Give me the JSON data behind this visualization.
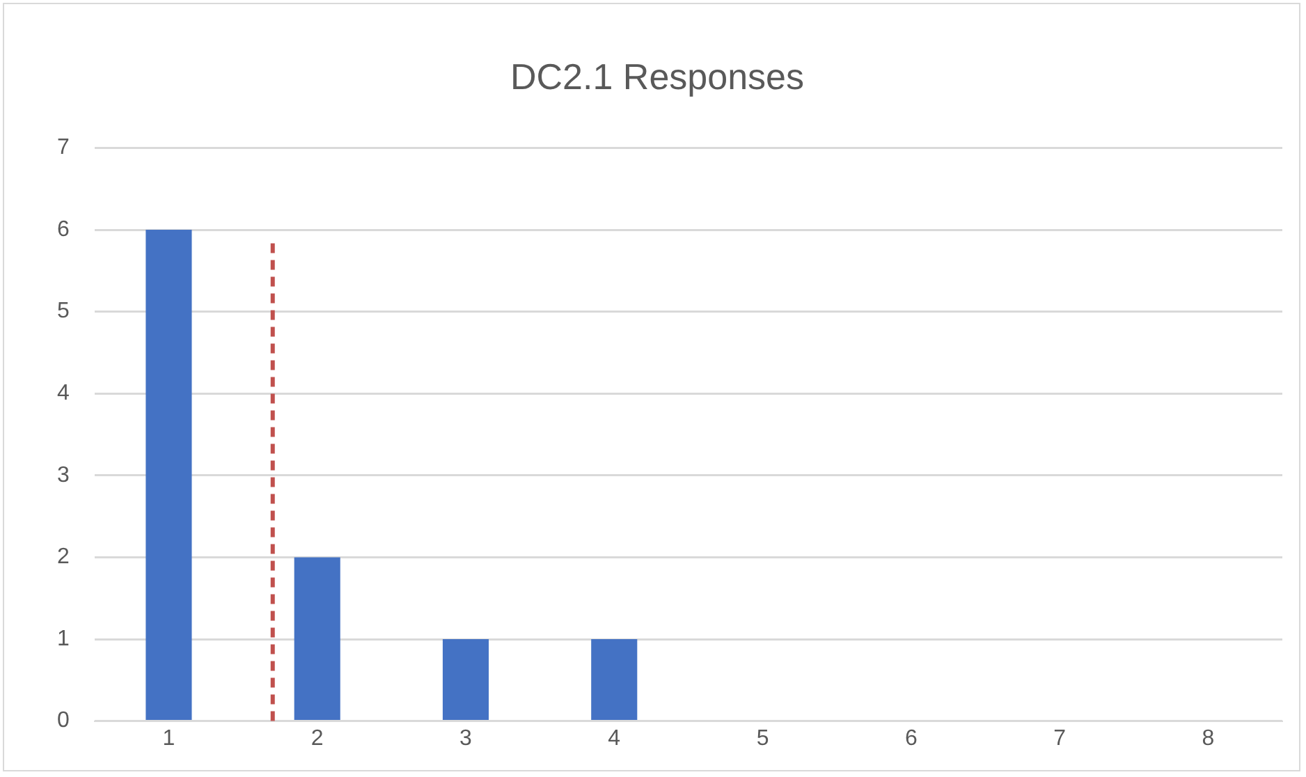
{
  "chart_data": {
    "type": "bar",
    "title": "DC2.1 Responses",
    "x": [
      1,
      2,
      3,
      4,
      5,
      6,
      7,
      8
    ],
    "values": [
      6,
      2,
      1,
      1,
      0,
      0,
      0,
      0
    ],
    "color": "#4472c4",
    "xlim": [
      0.5,
      8.5
    ],
    "xticks": [
      1,
      2,
      3,
      4,
      5,
      6,
      7,
      8
    ],
    "ylim": [
      0,
      7
    ],
    "yticks": [
      0,
      1,
      2,
      3,
      4,
      5,
      6,
      7
    ],
    "grid": "y",
    "legend": false,
    "ref_lines": [
      {
        "axis": "x",
        "value": 1.7,
        "color": "#c0504d",
        "line_style": "dashed"
      }
    ]
  }
}
